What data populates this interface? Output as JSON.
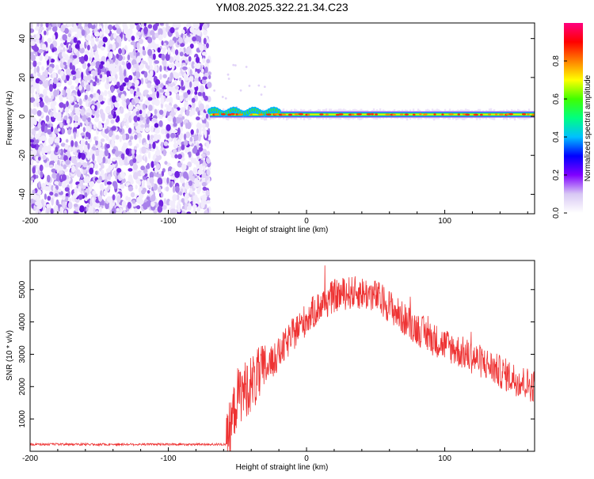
{
  "chart_data": [
    {
      "type": "heatmap",
      "title": "YM08.2025.322.21.34.C23",
      "xlabel": "Height of straight line (km)",
      "ylabel": "Frequency (Hz)",
      "xlim": [
        -200,
        165
      ],
      "ylim": [
        -50,
        48
      ],
      "x_ticks": [
        -200,
        -100,
        0,
        100
      ],
      "y_ticks": [
        -40,
        -20,
        0,
        20,
        40
      ],
      "noise_region_x": [
        -200,
        -70
      ],
      "signal_line_x": [
        -70,
        165
      ],
      "signal_frequency_hz": 1,
      "colorbar": {
        "label": "Normalized spectral amplitude",
        "range": [
          0,
          1
        ],
        "ticks": [
          0.0,
          0.2,
          0.4,
          0.6,
          0.8
        ],
        "colors": [
          "#ffffff",
          "#d8c8f4",
          "#8000ff",
          "#0000ff",
          "#00c0ff",
          "#00ff80",
          "#40ff00",
          "#ffff00",
          "#ff8000",
          "#ff0000",
          "#ff0080"
        ]
      }
    },
    {
      "type": "line",
      "xlabel": "Height of straight line (km)",
      "ylabel": "SNR (10 * v/v)",
      "xlim": [
        -200,
        165
      ],
      "ylim": [
        0,
        5900
      ],
      "x_ticks": [
        -200,
        -100,
        0,
        100
      ],
      "y_ticks": [
        1000,
        2000,
        3000,
        4000,
        5000
      ],
      "color": "#ee3333",
      "series": [
        {
          "name": "SNR",
          "x": [
            -200,
            -150,
            -100,
            -58,
            -50,
            -40,
            -30,
            -20,
            -10,
            0,
            10,
            20,
            30,
            40,
            50,
            60,
            70,
            80,
            90,
            100,
            110,
            120,
            130,
            140,
            150,
            165
          ],
          "y": [
            200,
            200,
            200,
            200,
            1700,
            2100,
            2500,
            3000,
            3600,
            4100,
            4500,
            4800,
            4900,
            4900,
            4800,
            4500,
            4100,
            3800,
            3500,
            3300,
            3100,
            2900,
            2700,
            2450,
            2250,
            2000
          ]
        }
      ]
    }
  ]
}
